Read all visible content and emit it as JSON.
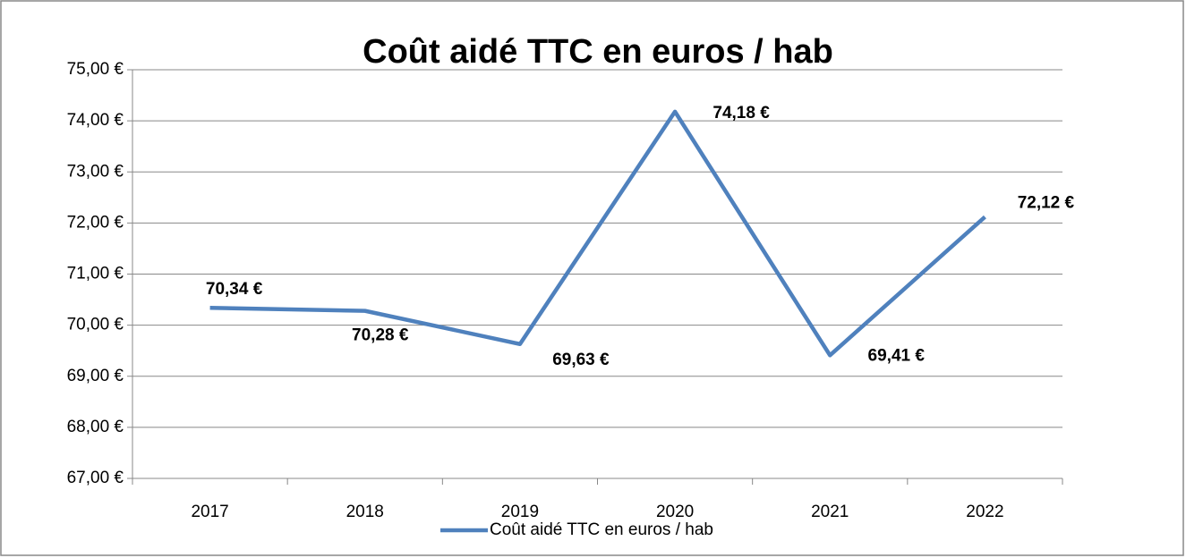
{
  "chart_data": {
    "type": "line",
    "title": "Coût aidé TTC en euros / hab",
    "categories": [
      "2017",
      "2018",
      "2019",
      "2020",
      "2021",
      "2022"
    ],
    "series": [
      {
        "name": "Coût aidé TTC en euros / hab",
        "color": "#4f81bd",
        "values": [
          70.34,
          70.28,
          69.63,
          74.18,
          69.41,
          72.12
        ],
        "value_labels": [
          "70,34 €",
          "70,28 €",
          "69,63 €",
          "74,18 €",
          "69,41 €",
          "72,12 €"
        ]
      }
    ],
    "ylim": [
      67,
      75
    ],
    "yticks": [
      {
        "value": 67,
        "label": "67,00 €"
      },
      {
        "value": 68,
        "label": "68,00 €"
      },
      {
        "value": 69,
        "label": "69,00 €"
      },
      {
        "value": 70,
        "label": "70,00 €"
      },
      {
        "value": 71,
        "label": "71,00 €"
      },
      {
        "value": 72,
        "label": "72,00 €"
      },
      {
        "value": 73,
        "label": "73,00 €"
      },
      {
        "value": 74,
        "label": "74,00 €"
      },
      {
        "value": 75,
        "label": "75,00 €"
      }
    ],
    "grid": true,
    "legend": "bottom"
  }
}
